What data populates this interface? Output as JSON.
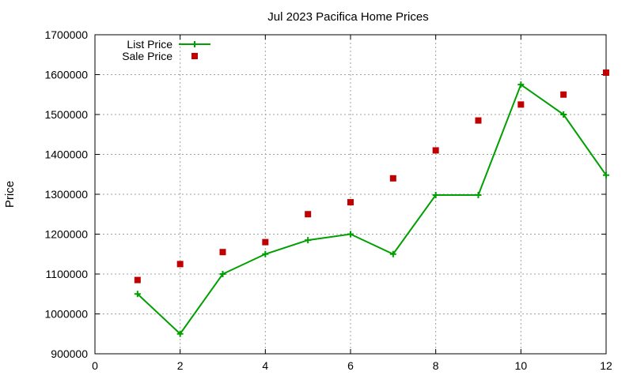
{
  "chart_data": {
    "type": "line",
    "title": "Jul 2023 Pacifica Home Prices",
    "xlabel": "",
    "ylabel": "Price",
    "xlim": [
      0,
      12
    ],
    "ylim": [
      900000,
      1700000
    ],
    "x_ticks": [
      0,
      2,
      4,
      6,
      8,
      10,
      12
    ],
    "y_ticks": [
      900000,
      1000000,
      1100000,
      1200000,
      1300000,
      1400000,
      1500000,
      1600000,
      1700000
    ],
    "grid": true,
    "legend_position": "top-left",
    "series": [
      {
        "name": "List Price",
        "style": "linespoints",
        "marker": "plus",
        "color": "#00a000",
        "x": [
          1,
          2,
          3,
          4,
          5,
          6,
          7,
          8,
          9,
          10,
          11,
          12
        ],
        "values": [
          1050000,
          950000,
          1100000,
          1150000,
          1185000,
          1200000,
          1150000,
          1298000,
          1298000,
          1575000,
          1500000,
          1348000
        ]
      },
      {
        "name": "Sale Price",
        "style": "points",
        "marker": "square",
        "color": "#c00000",
        "x": [
          1,
          2,
          3,
          4,
          5,
          6,
          7,
          8,
          9,
          10,
          11,
          12
        ],
        "values": [
          1085000,
          1125000,
          1155000,
          1180000,
          1250000,
          1280000,
          1340000,
          1410000,
          1485000,
          1525000,
          1550000,
          1605000
        ]
      }
    ]
  }
}
